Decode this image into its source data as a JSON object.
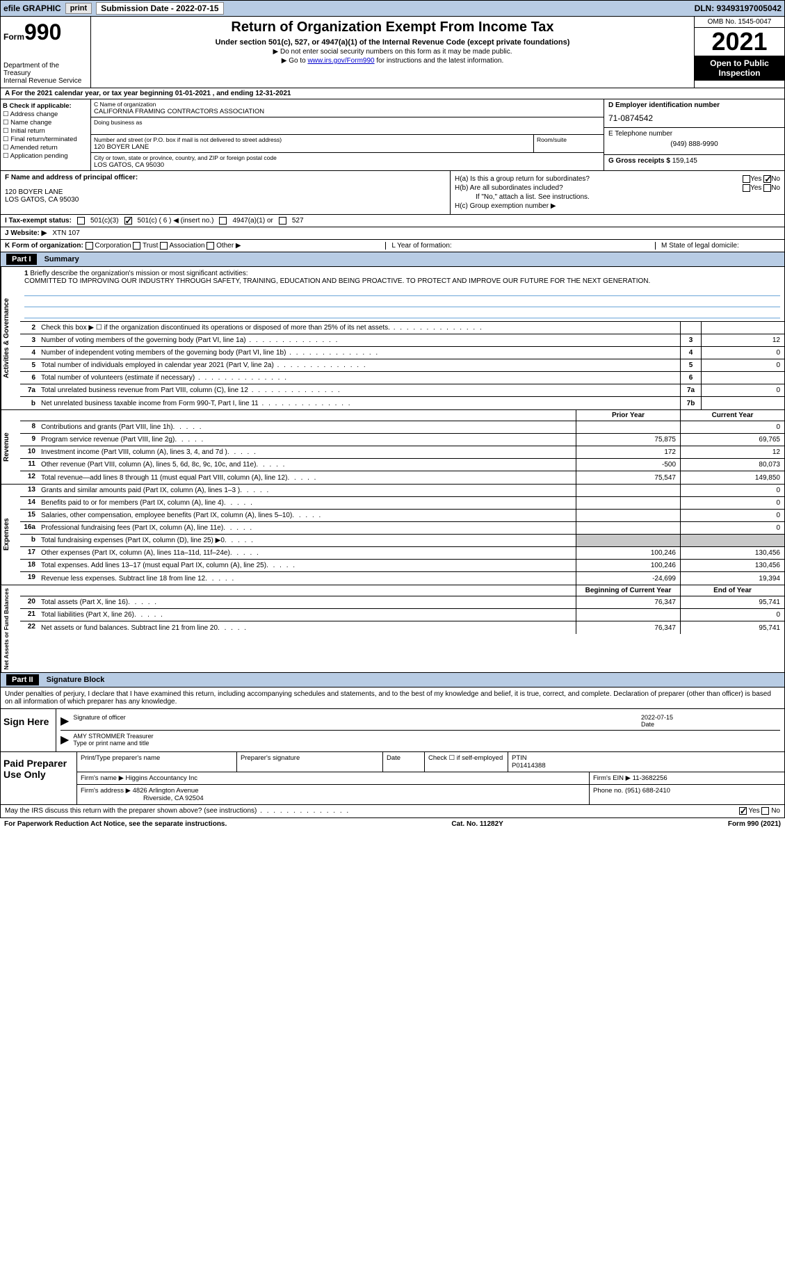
{
  "topbar": {
    "efile": "efile GRAPHIC",
    "print": "print",
    "subdate_label": "Submission Date - 2022-07-15",
    "dln": "DLN: 93493197005042"
  },
  "header": {
    "form_label": "Form",
    "form_num": "990",
    "dept": "Department of the Treasury",
    "irs": "Internal Revenue Service",
    "title": "Return of Organization Exempt From Income Tax",
    "subtitle": "Under section 501(c), 527, or 4947(a)(1) of the Internal Revenue Code (except private foundations)",
    "note1": "▶ Do not enter social security numbers on this form as it may be made public.",
    "note2_pre": "▶ Go to ",
    "note2_link": "www.irs.gov/Form990",
    "note2_post": " for instructions and the latest information.",
    "omb": "OMB No. 1545-0047",
    "year": "2021",
    "open": "Open to Public Inspection"
  },
  "section_a": {
    "a_text": "A For the 2021 calendar year, or tax year beginning 01-01-2021   , and ending 12-31-2021",
    "b_label": "B Check if applicable:",
    "b_opts": [
      "Address change",
      "Name change",
      "Initial return",
      "Final return/terminated",
      "Amended return",
      "Application pending"
    ],
    "c_name_lbl": "C Name of organization",
    "c_name": "CALIFORNIA FRAMING CONTRACTORS ASSOCIATION",
    "dba_lbl": "Doing business as",
    "street_lbl": "Number and street (or P.O. box if mail is not delivered to street address)",
    "street": "120 BOYER LANE",
    "room_lbl": "Room/suite",
    "city_lbl": "City or town, state or province, country, and ZIP or foreign postal code",
    "city": "LOS GATOS, CA  95030",
    "d_lbl": "D Employer identification number",
    "d_ein": "71-0874542",
    "e_lbl": "E Telephone number",
    "e_phone": "(949) 888-9990",
    "g_lbl": "G Gross receipts $",
    "g_val": "159,145"
  },
  "section_f": {
    "f_lbl": "F Name and address of principal officer:",
    "f_addr1": "120 BOYER LANE",
    "f_addr2": "LOS GATOS, CA  95030",
    "h_a": "H(a)  Is this a group return for subordinates?",
    "h_b": "H(b)  Are all subordinates included?",
    "h_b_note": "If \"No,\" attach a list. See instructions.",
    "h_c": "H(c)  Group exemption number ▶",
    "yes": "Yes",
    "no": "No"
  },
  "status": {
    "i_lbl": "I   Tax-exempt status:",
    "opt1": "501(c)(3)",
    "opt2": "501(c) ( 6 ) ◀ (insert no.)",
    "opt3": "4947(a)(1) or",
    "opt4": "527"
  },
  "website": {
    "j_lbl": "J   Website: ▶",
    "j_val": "XTN 107"
  },
  "formorg": {
    "k_lbl": "K Form of organization:",
    "k_opts": [
      "Corporation",
      "Trust",
      "Association",
      "Other ▶"
    ],
    "l_lbl": "L Year of formation:",
    "m_lbl": "M State of legal domicile:"
  },
  "part1": {
    "header": "Part I",
    "title": "Summary"
  },
  "mission": {
    "num": "1",
    "lbl": "Briefly describe the organization's mission or most significant activities:",
    "text": "COMMITTED TO IMPROVING OUR INDUSTRY THROUGH SAFETY, TRAINING, EDUCATION AND BEING PROACTIVE. TO PROTECT AND IMPROVE OUR FUTURE FOR THE NEXT GENERATION."
  },
  "gov_rows": [
    {
      "num": "2",
      "desc": "Check this box ▶ ☐ if the organization discontinued its operations or disposed of more than 25% of its net assets.",
      "box": "",
      "val": ""
    },
    {
      "num": "3",
      "desc": "Number of voting members of the governing body (Part VI, line 1a)",
      "box": "3",
      "val": "12"
    },
    {
      "num": "4",
      "desc": "Number of independent voting members of the governing body (Part VI, line 1b)",
      "box": "4",
      "val": "0"
    },
    {
      "num": "5",
      "desc": "Total number of individuals employed in calendar year 2021 (Part V, line 2a)",
      "box": "5",
      "val": "0"
    },
    {
      "num": "6",
      "desc": "Total number of volunteers (estimate if necessary)",
      "box": "6",
      "val": ""
    },
    {
      "num": "7a",
      "desc": "Total unrelated business revenue from Part VIII, column (C), line 12",
      "box": "7a",
      "val": "0"
    },
    {
      "num": "b",
      "desc": "Net unrelated business taxable income from Form 990-T, Part I, line 11",
      "box": "7b",
      "val": ""
    }
  ],
  "vlabels": {
    "gov": "Activities & Governance",
    "rev": "Revenue",
    "exp": "Expenses",
    "net": "Net Assets or Fund Balances"
  },
  "fin_head": {
    "prior": "Prior Year",
    "current": "Current Year"
  },
  "rev_rows": [
    {
      "num": "8",
      "desc": "Contributions and grants (Part VIII, line 1h)",
      "v1": "",
      "v2": "0"
    },
    {
      "num": "9",
      "desc": "Program service revenue (Part VIII, line 2g)",
      "v1": "75,875",
      "v2": "69,765"
    },
    {
      "num": "10",
      "desc": "Investment income (Part VIII, column (A), lines 3, 4, and 7d )",
      "v1": "172",
      "v2": "12"
    },
    {
      "num": "11",
      "desc": "Other revenue (Part VIII, column (A), lines 5, 6d, 8c, 9c, 10c, and 11e)",
      "v1": "-500",
      "v2": "80,073"
    },
    {
      "num": "12",
      "desc": "Total revenue—add lines 8 through 11 (must equal Part VIII, column (A), line 12)",
      "v1": "75,547",
      "v2": "149,850"
    }
  ],
  "exp_rows": [
    {
      "num": "13",
      "desc": "Grants and similar amounts paid (Part IX, column (A), lines 1–3 )",
      "v1": "",
      "v2": "0"
    },
    {
      "num": "14",
      "desc": "Benefits paid to or for members (Part IX, column (A), line 4)",
      "v1": "",
      "v2": "0"
    },
    {
      "num": "15",
      "desc": "Salaries, other compensation, employee benefits (Part IX, column (A), lines 5–10)",
      "v1": "",
      "v2": "0"
    },
    {
      "num": "16a",
      "desc": "Professional fundraising fees (Part IX, column (A), line 11e)",
      "v1": "",
      "v2": "0"
    },
    {
      "num": "b",
      "desc": "Total fundraising expenses (Part IX, column (D), line 25) ▶0",
      "v1": "grey",
      "v2": "grey"
    },
    {
      "num": "17",
      "desc": "Other expenses (Part IX, column (A), lines 11a–11d, 11f–24e)",
      "v1": "100,246",
      "v2": "130,456"
    },
    {
      "num": "18",
      "desc": "Total expenses. Add lines 13–17 (must equal Part IX, column (A), line 25)",
      "v1": "100,246",
      "v2": "130,456"
    },
    {
      "num": "19",
      "desc": "Revenue less expenses. Subtract line 18 from line 12",
      "v1": "-24,699",
      "v2": "19,394"
    }
  ],
  "net_head": {
    "begin": "Beginning of Current Year",
    "end": "End of Year"
  },
  "net_rows": [
    {
      "num": "20",
      "desc": "Total assets (Part X, line 16)",
      "v1": "76,347",
      "v2": "95,741"
    },
    {
      "num": "21",
      "desc": "Total liabilities (Part X, line 26)",
      "v1": "",
      "v2": "0"
    },
    {
      "num": "22",
      "desc": "Net assets or fund balances. Subtract line 21 from line 20",
      "v1": "76,347",
      "v2": "95,741"
    }
  ],
  "part2": {
    "header": "Part II",
    "title": "Signature Block",
    "text": "Under penalties of perjury, I declare that I have examined this return, including accompanying schedules and statements, and to the best of my knowledge and belief, it is true, correct, and complete. Declaration of preparer (other than officer) is based on all information of which preparer has any knowledge."
  },
  "sign": {
    "here": "Sign Here",
    "sig_lbl": "Signature of officer",
    "date_lbl": "Date",
    "date": "2022-07-15",
    "name": "AMY STROMMER Treasurer",
    "name_lbl": "Type or print name and title"
  },
  "prep": {
    "title": "Paid Preparer Use Only",
    "h1": "Print/Type preparer's name",
    "h2": "Preparer's signature",
    "h3": "Date",
    "h4_pre": "Check ☐ if self-employed",
    "h5": "PTIN",
    "ptin": "P01414388",
    "firm_lbl": "Firm's name   ▶",
    "firm": "Higgins Accountancy Inc",
    "ein_lbl": "Firm's EIN ▶",
    "ein": "11-3682256",
    "addr_lbl": "Firm's address ▶",
    "addr1": "4826 Arlington Avenue",
    "addr2": "Riverside, CA  92504",
    "phone_lbl": "Phone no.",
    "phone": "(951) 688-2410"
  },
  "footer": {
    "discuss": "May the IRS discuss this return with the preparer shown above? (see instructions)",
    "yes": "Yes",
    "no": "No",
    "paperwork": "For Paperwork Reduction Act Notice, see the separate instructions.",
    "cat": "Cat. No. 11282Y",
    "form": "Form 990 (2021)"
  }
}
